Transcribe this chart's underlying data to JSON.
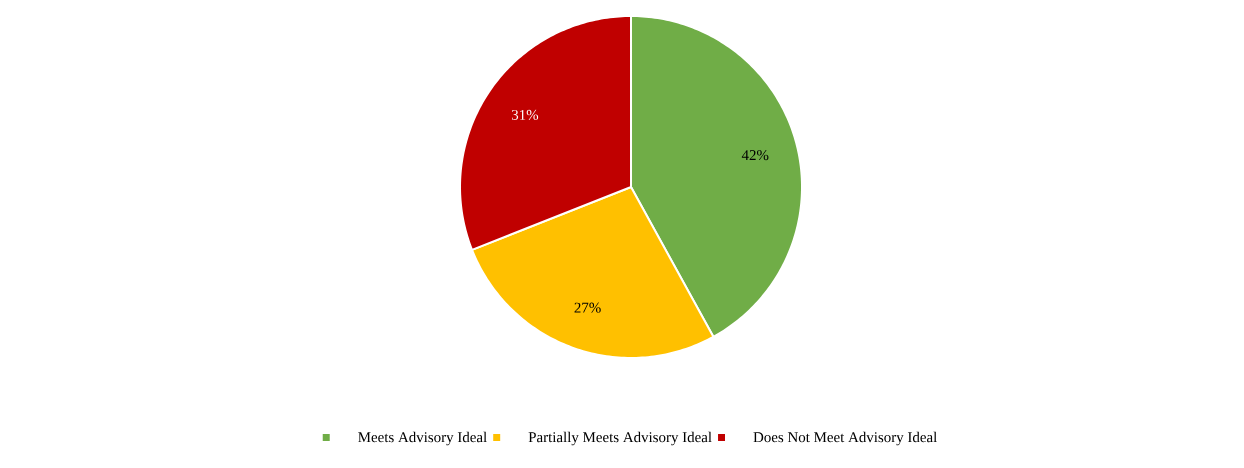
{
  "chart_data": {
    "type": "pie",
    "categories": [
      "Meets Advisory Ideal",
      "Partially Meets Advisory Ideal",
      "Does Not Meet Advisory Ideal"
    ],
    "values": [
      42,
      27,
      31
    ],
    "value_labels": [
      "42%",
      "27%",
      "31%"
    ],
    "colors": [
      "#70ad47",
      "#ffc000",
      "#c00000"
    ],
    "legend": "bottom"
  }
}
